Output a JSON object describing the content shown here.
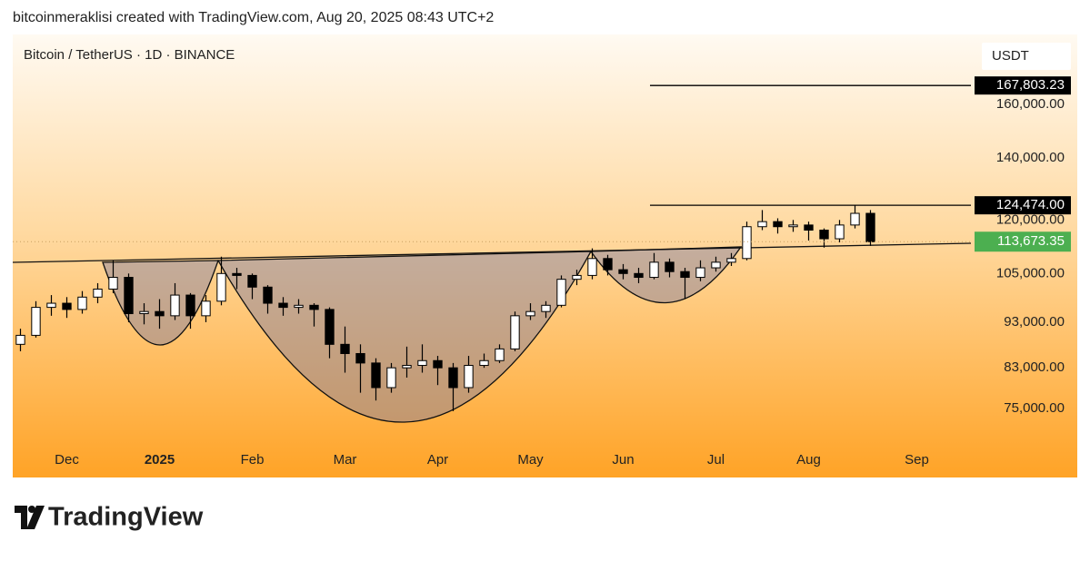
{
  "header": {
    "credit": "bitcoinmeraklisi created with TradingView.com, Aug 20, 2025 08:43 UTC+2"
  },
  "chart_data": {
    "type": "candlestick",
    "title": "Bitcoin / TetherUS · 1D · BINANCE",
    "y_axis_label": "USDT",
    "log_scale": true,
    "grid": false,
    "up_color": "#000000",
    "down_color": "#000000",
    "categories": [
      null,
      null,
      null,
      "Dec",
      null,
      null,
      null,
      null,
      null,
      "2025",
      null,
      null,
      null,
      null,
      null,
      "Feb",
      null,
      null,
      null,
      null,
      null,
      "Mar",
      null,
      null,
      null,
      null,
      null,
      "Apr",
      null,
      null,
      null,
      null,
      null,
      "May",
      null,
      null,
      null,
      null,
      null,
      "Jun",
      null,
      null,
      null,
      null,
      null,
      "Jul",
      null,
      null,
      null,
      null,
      null,
      "Aug",
      null,
      null,
      null,
      null,
      null,
      null,
      "Sep",
      null,
      null,
      null
    ],
    "open": [
      88000,
      90000,
      96500,
      97500,
      96000,
      99000,
      101000,
      104000,
      95000,
      95500,
      94500,
      99500,
      94500,
      98000,
      105000,
      104500,
      101500,
      97500,
      96500,
      97000,
      96000,
      88000,
      86000,
      84000,
      79000,
      83000,
      83500,
      84500,
      83000,
      79000,
      83500,
      84500,
      87000,
      94500,
      95500,
      97000,
      103500,
      104500,
      109000,
      106000,
      105000,
      104000,
      108000,
      105500,
      104000,
      106500,
      108000,
      109000,
      118000,
      119500,
      118000,
      118500,
      117000,
      114500,
      118500,
      122000,
      null,
      null,
      null,
      null,
      null,
      null
    ],
    "high": [
      91500,
      98000,
      99500,
      99000,
      100500,
      102500,
      108500,
      105000,
      97500,
      98500,
      102500,
      100000,
      99500,
      109500,
      106500,
      105000,
      102000,
      99000,
      98500,
      97500,
      96500,
      92000,
      88000,
      85000,
      84000,
      87500,
      88000,
      85500,
      84000,
      85500,
      86000,
      88000,
      95500,
      97500,
      98000,
      104500,
      106000,
      111800,
      110000,
      107500,
      106500,
      110500,
      109000,
      106500,
      108500,
      109500,
      110500,
      119500,
      123000,
      120500,
      120000,
      119500,
      117500,
      120000,
      124474,
      123000,
      null,
      null,
      null,
      null,
      null,
      null
    ],
    "low": [
      86500,
      89500,
      94500,
      94000,
      95000,
      97500,
      100000,
      93000,
      92500,
      91500,
      93500,
      91500,
      93000,
      97000,
      101000,
      98500,
      95000,
      94500,
      95000,
      92000,
      85000,
      82000,
      78000,
      76500,
      78000,
      81000,
      82000,
      79500,
      74500,
      78000,
      83000,
      84000,
      86500,
      93500,
      94000,
      96500,
      102000,
      103500,
      104500,
      103500,
      102500,
      103500,
      104000,
      98500,
      103000,
      105500,
      107000,
      108500,
      117000,
      116000,
      116500,
      114000,
      112000,
      113500,
      117500,
      112500,
      null,
      null,
      null,
      null,
      null,
      null
    ],
    "close": [
      90000,
      96500,
      97500,
      96000,
      99000,
      101000,
      104000,
      95000,
      95500,
      94500,
      99500,
      94500,
      98000,
      105000,
      104500,
      101500,
      97500,
      96500,
      97000,
      96000,
      88000,
      86000,
      84000,
      79000,
      83000,
      83500,
      84500,
      83000,
      79000,
      83500,
      84500,
      87000,
      94500,
      95500,
      97000,
      103500,
      104500,
      109000,
      106000,
      105000,
      104000,
      108000,
      105500,
      104000,
      106500,
      108000,
      109000,
      118000,
      119500,
      118000,
      118500,
      117000,
      114500,
      118500,
      122000,
      113673.35,
      null,
      null,
      null,
      null,
      null,
      null
    ],
    "ylim": [
      68500,
      189700
    ],
    "yticks": [
      {
        "value": 75000,
        "label": "75,000.00"
      },
      {
        "value": 83000,
        "label": "83,000.00"
      },
      {
        "value": 93000,
        "label": "93,000.00"
      },
      {
        "value": 105000,
        "label": "105,000.00"
      },
      {
        "value": 120000,
        "label": "120,000.00"
      },
      {
        "value": 140000,
        "label": "140,000.00"
      },
      {
        "value": 160000,
        "label": "160,000.00"
      }
    ],
    "price_lines": [
      {
        "value": 167803.23,
        "label": "167,803.23",
        "color": "#000000"
      },
      {
        "value": 124474,
        "label": "124,474.00",
        "color": "#000000"
      }
    ],
    "last_price": {
      "value": 113673.35,
      "label": "113,673.35",
      "color": "#4caf50"
    }
  },
  "footer": {
    "logo": "TradingView"
  }
}
